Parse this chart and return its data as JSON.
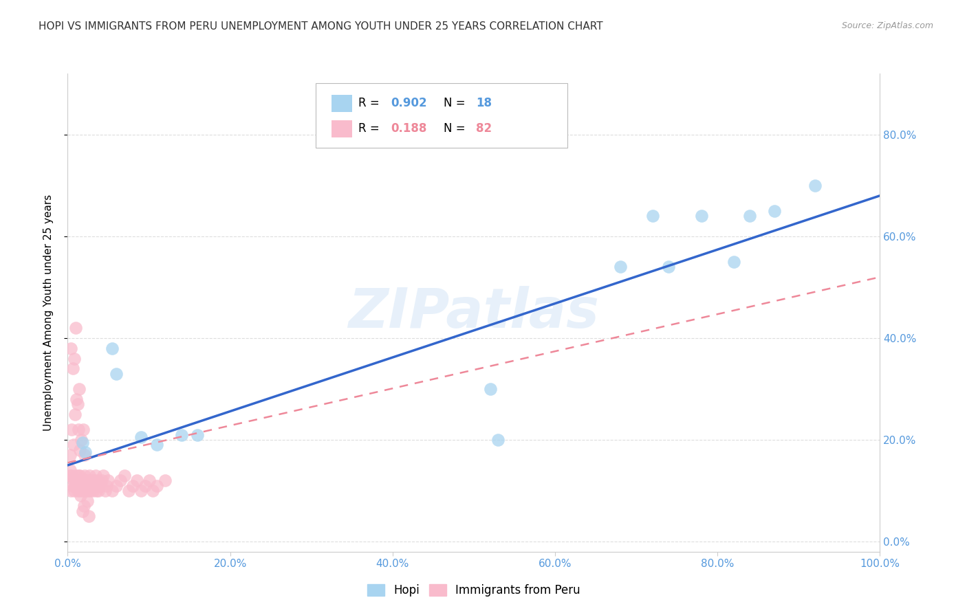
{
  "title": "HOPI VS IMMIGRANTS FROM PERU UNEMPLOYMENT AMONG YOUTH UNDER 25 YEARS CORRELATION CHART",
  "source": "Source: ZipAtlas.com",
  "ylabel": "Unemployment Among Youth under 25 years",
  "watermark": "ZIPatlas",
  "hopi_color": "#A8D4F0",
  "peru_color": "#F9BBCC",
  "hopi_line_color": "#3366CC",
  "peru_line_color": "#EE8899",
  "background_color": "#ffffff",
  "title_color": "#333333",
  "source_color": "#999999",
  "tick_color": "#5599DD",
  "xlim": [
    0.0,
    1.0
  ],
  "ylim": [
    -0.02,
    0.92
  ],
  "ytick_vals": [
    0.0,
    0.2,
    0.4,
    0.6,
    0.8
  ],
  "xtick_vals": [
    0.0,
    0.2,
    0.4,
    0.6,
    0.8,
    1.0
  ],
  "hopi_scatter_x": [
    0.018,
    0.022,
    0.055,
    0.09,
    0.14,
    0.06,
    0.52,
    0.68,
    0.72,
    0.74,
    0.78,
    0.82,
    0.84,
    0.87,
    0.92,
    0.53,
    0.11,
    0.16
  ],
  "hopi_scatter_y": [
    0.195,
    0.175,
    0.38,
    0.205,
    0.21,
    0.33,
    0.3,
    0.54,
    0.64,
    0.54,
    0.64,
    0.55,
    0.64,
    0.65,
    0.7,
    0.2,
    0.19,
    0.21
  ],
  "peru_scatter_x": [
    0.002,
    0.003,
    0.004,
    0.005,
    0.006,
    0.007,
    0.008,
    0.009,
    0.01,
    0.01,
    0.011,
    0.012,
    0.013,
    0.013,
    0.014,
    0.015,
    0.015,
    0.016,
    0.017,
    0.018,
    0.019,
    0.02,
    0.021,
    0.022,
    0.023,
    0.024,
    0.025,
    0.025,
    0.026,
    0.027,
    0.028,
    0.029,
    0.03,
    0.031,
    0.032,
    0.033,
    0.034,
    0.035,
    0.036,
    0.037,
    0.038,
    0.04,
    0.042,
    0.044,
    0.046,
    0.048,
    0.05,
    0.055,
    0.06,
    0.065,
    0.07,
    0.075,
    0.08,
    0.085,
    0.09,
    0.095,
    0.1,
    0.105,
    0.11,
    0.12,
    0.003,
    0.005,
    0.007,
    0.009,
    0.011,
    0.013,
    0.015,
    0.017,
    0.019,
    0.021,
    0.004,
    0.006,
    0.008,
    0.01,
    0.012,
    0.014,
    0.016,
    0.018,
    0.02,
    0.022,
    0.024,
    0.026
  ],
  "peru_scatter_y": [
    0.13,
    0.14,
    0.1,
    0.13,
    0.11,
    0.12,
    0.1,
    0.11,
    0.13,
    0.12,
    0.11,
    0.1,
    0.13,
    0.12,
    0.11,
    0.13,
    0.1,
    0.11,
    0.12,
    0.1,
    0.11,
    0.12,
    0.13,
    0.1,
    0.11,
    0.12,
    0.1,
    0.11,
    0.12,
    0.13,
    0.1,
    0.11,
    0.12,
    0.1,
    0.11,
    0.12,
    0.13,
    0.1,
    0.11,
    0.12,
    0.1,
    0.11,
    0.12,
    0.13,
    0.1,
    0.11,
    0.12,
    0.1,
    0.11,
    0.12,
    0.13,
    0.1,
    0.11,
    0.12,
    0.1,
    0.11,
    0.12,
    0.1,
    0.11,
    0.12,
    0.17,
    0.22,
    0.19,
    0.25,
    0.28,
    0.22,
    0.18,
    0.2,
    0.22,
    0.17,
    0.38,
    0.34,
    0.36,
    0.42,
    0.27,
    0.3,
    0.09,
    0.06,
    0.07,
    0.1,
    0.08,
    0.05
  ],
  "hopi_line_x0": 0.0,
  "hopi_line_y0": 0.15,
  "hopi_line_x1": 1.0,
  "hopi_line_y1": 0.68,
  "peru_line_x0": 0.0,
  "peru_line_y0": 0.155,
  "peru_line_x1": 1.0,
  "peru_line_y1": 0.52
}
